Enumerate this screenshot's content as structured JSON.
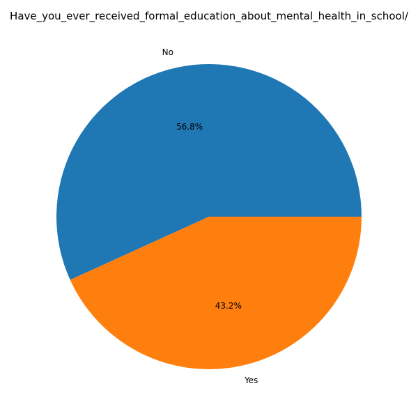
{
  "chart_data": {
    "type": "pie",
    "title": "Have_you_ever_received_formal_education_about_mental_health_in_school/",
    "categories": [
      "No",
      "Yes"
    ],
    "values": [
      56.8,
      43.2
    ],
    "labels": [
      "56.8%",
      "43.2%"
    ],
    "colors": [
      "#1f77b4",
      "#ff7f0e"
    ]
  }
}
